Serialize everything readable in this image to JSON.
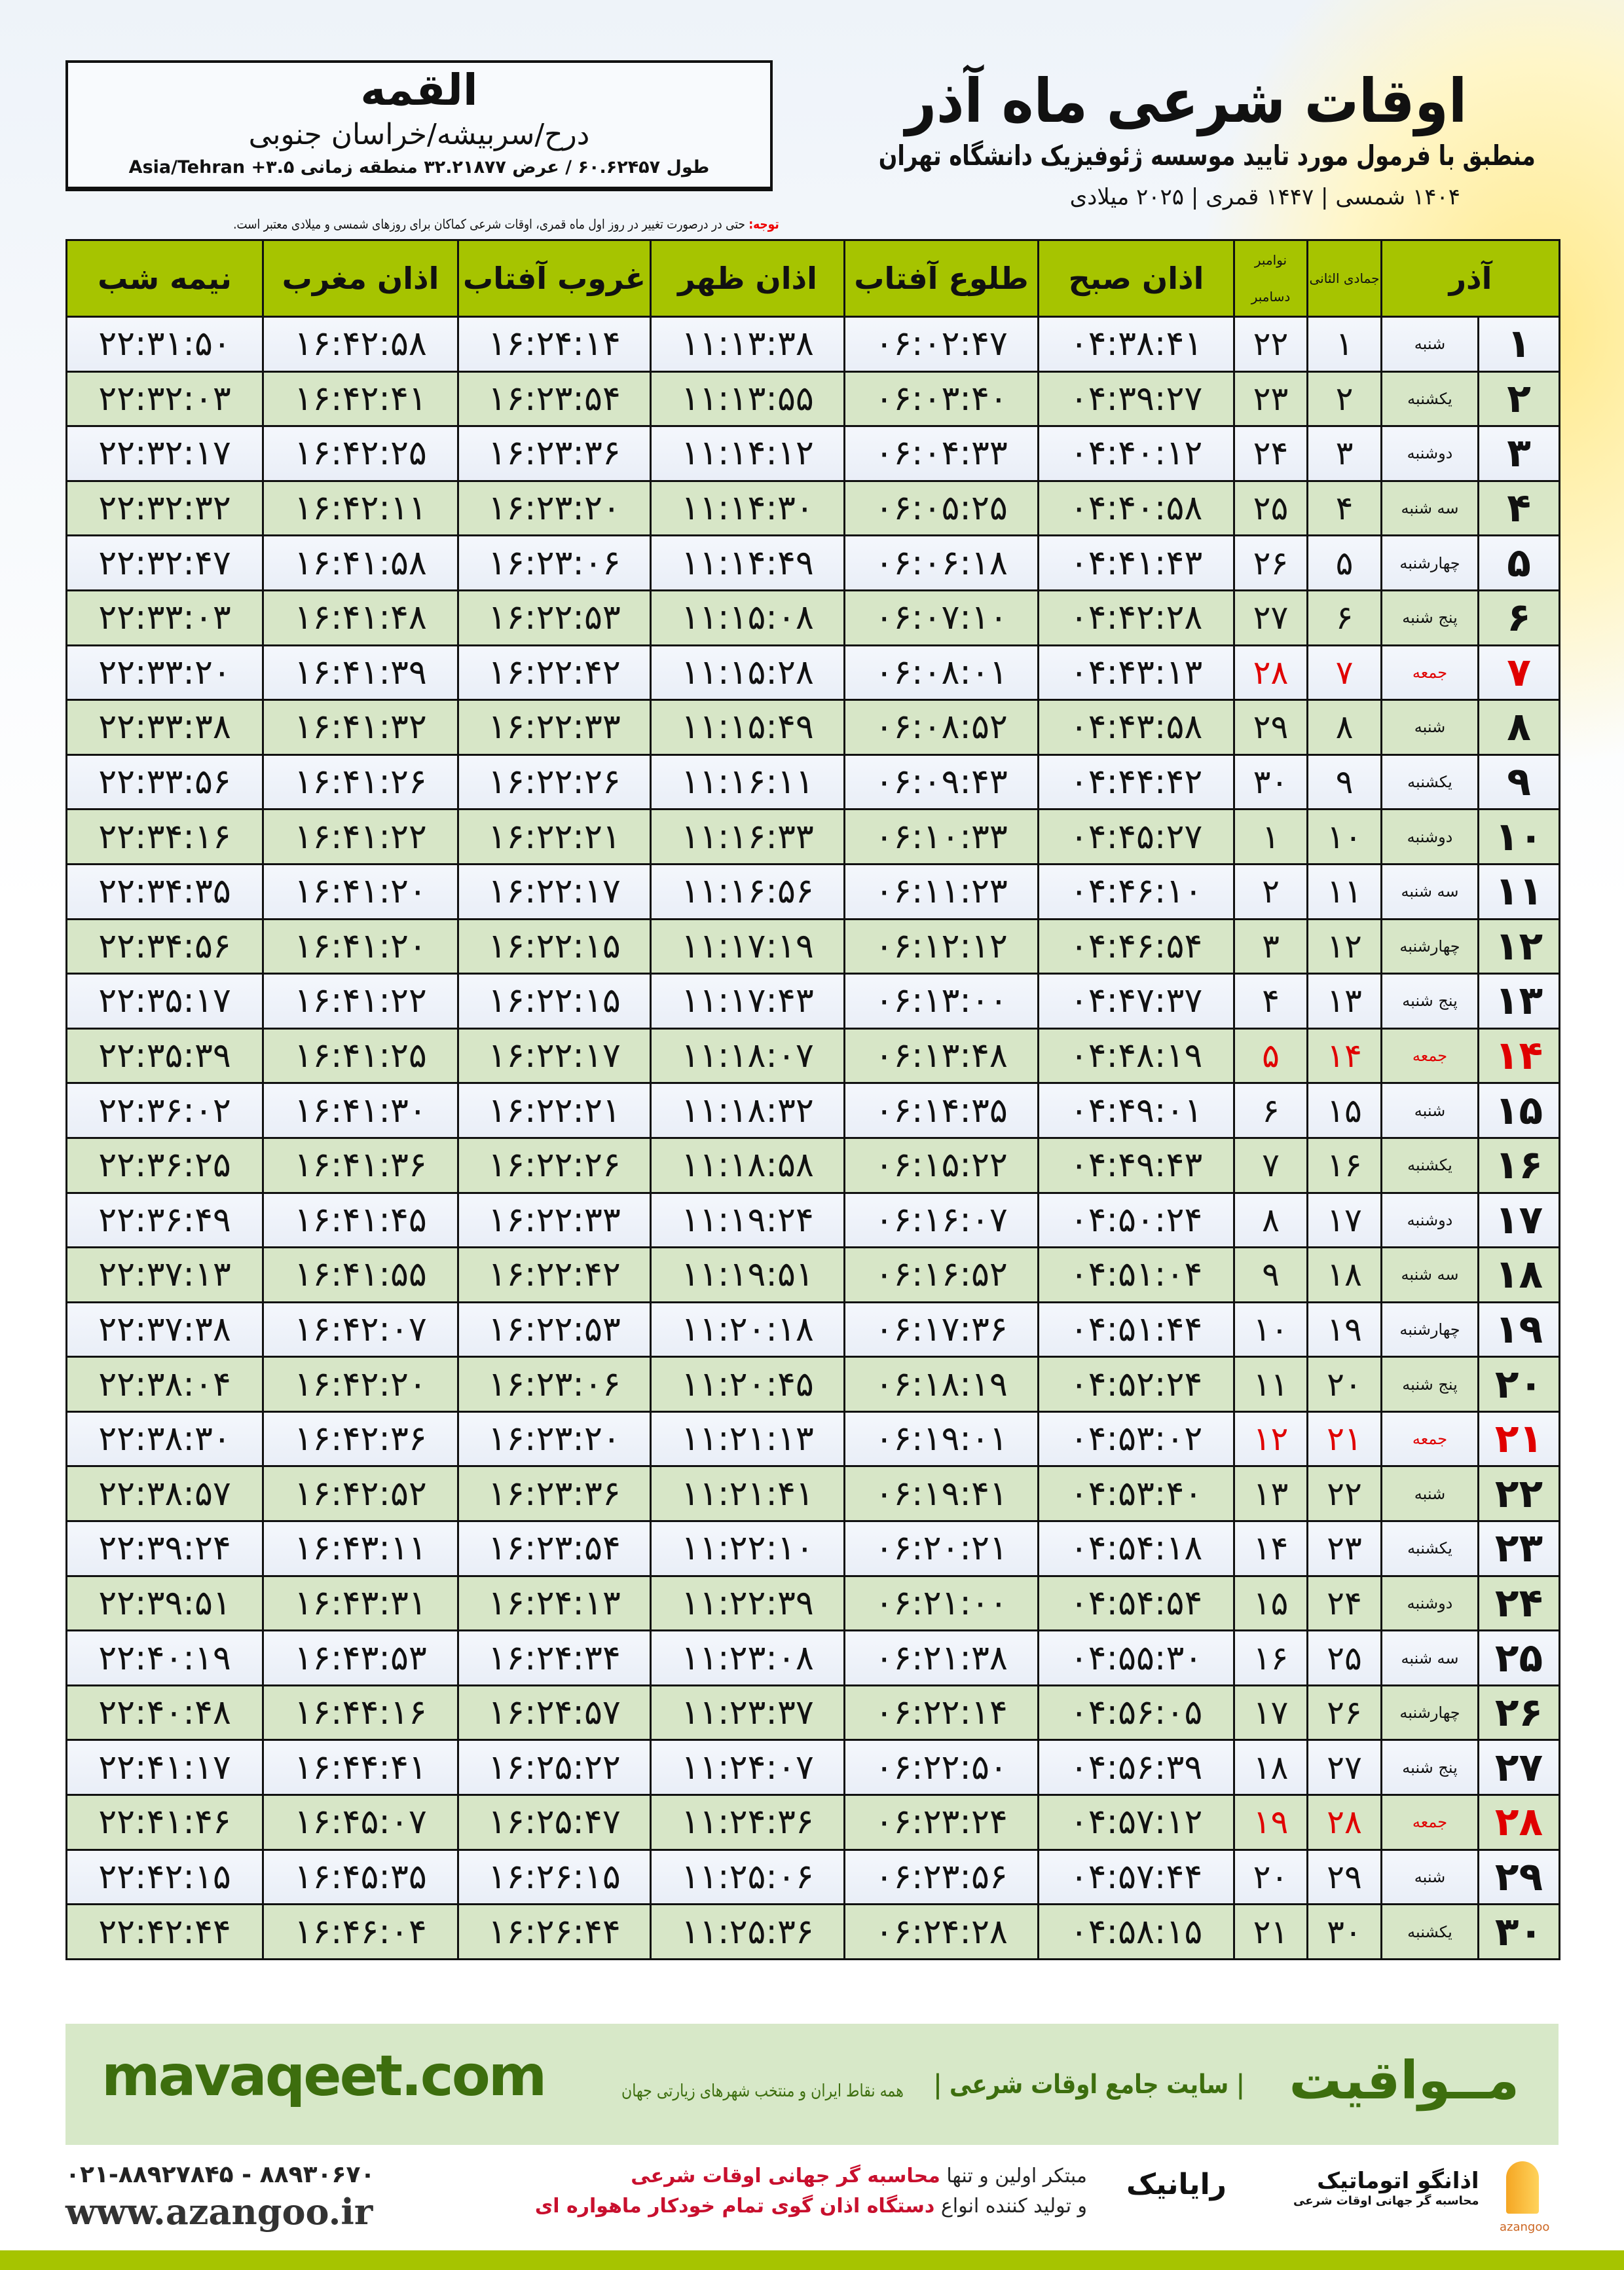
{
  "location": {
    "city": "القمه",
    "region": "درح/سربیشه/خراسان جنوبی",
    "coords": "طول ۶۰.۶۲۴۵۷ / عرض ۳۲.۲۱۸۷۷ منطقه زمانی ۳.۵+ Asia/Tehran"
  },
  "header": {
    "title": "اوقات شرعی ماه آذر",
    "subtitle": "منطبق با فرمول مورد تایید موسسه ژئوفیزیک دانشگاه تهران",
    "dates": "۱۴۰۴ شمسی | ۱۴۴۷ قمری | ۲۰۲۵ میلادی"
  },
  "note": {
    "label": "توجه:",
    "text": " حتی در درصورت تغییر در روز اول ماه قمری، اوقات شرعی کماکان برای روزهای شمسی و میلادی معتبر است."
  },
  "table": {
    "columns": {
      "day": "آذر",
      "hijri": "جمادی الثانی",
      "greg_top": "نوامبر",
      "greg_bottom": "دسامبر",
      "fajr": "اذان صبح",
      "sunrise": "طلوع آفتاب",
      "dhuhr": "اذان ظهر",
      "sunset": "غروب آفتاب",
      "maghrib": "اذان مغرب",
      "midnight": "نیمه شب"
    },
    "holiday_color": "#e00000",
    "rows": [
      [
        "۱",
        "شنبه",
        "۱",
        "۲۲",
        "۰۴:۳۸:۴۱",
        "۰۶:۰۲:۴۷",
        "۱۱:۱۳:۳۸",
        "۱۶:۲۴:۱۴",
        "۱۶:۴۲:۵۸",
        "۲۲:۳۱:۵۰",
        false
      ],
      [
        "۲",
        "یکشنبه",
        "۲",
        "۲۳",
        "۰۴:۳۹:۲۷",
        "۰۶:۰۳:۴۰",
        "۱۱:۱۳:۵۵",
        "۱۶:۲۳:۵۴",
        "۱۶:۴۲:۴۱",
        "۲۲:۳۲:۰۳",
        false
      ],
      [
        "۳",
        "دوشنبه",
        "۳",
        "۲۴",
        "۰۴:۴۰:۱۲",
        "۰۶:۰۴:۳۳",
        "۱۱:۱۴:۱۲",
        "۱۶:۲۳:۳۶",
        "۱۶:۴۲:۲۵",
        "۲۲:۳۲:۱۷",
        false
      ],
      [
        "۴",
        "سه شنبه",
        "۴",
        "۲۵",
        "۰۴:۴۰:۵۸",
        "۰۶:۰۵:۲۵",
        "۱۱:۱۴:۳۰",
        "۱۶:۲۳:۲۰",
        "۱۶:۴۲:۱۱",
        "۲۲:۳۲:۳۲",
        false
      ],
      [
        "۵",
        "چهارشنبه",
        "۵",
        "۲۶",
        "۰۴:۴۱:۴۳",
        "۰۶:۰۶:۱۸",
        "۱۱:۱۴:۴۹",
        "۱۶:۲۳:۰۶",
        "۱۶:۴۱:۵۸",
        "۲۲:۳۲:۴۷",
        false
      ],
      [
        "۶",
        "پنج شنبه",
        "۶",
        "۲۷",
        "۰۴:۴۲:۲۸",
        "۰۶:۰۷:۱۰",
        "۱۱:۱۵:۰۸",
        "۱۶:۲۲:۵۳",
        "۱۶:۴۱:۴۸",
        "۲۲:۳۳:۰۳",
        false
      ],
      [
        "۷",
        "جمعه",
        "۷",
        "۲۸",
        "۰۴:۴۳:۱۳",
        "۰۶:۰۸:۰۱",
        "۱۱:۱۵:۲۸",
        "۱۶:۲۲:۴۲",
        "۱۶:۴۱:۳۹",
        "۲۲:۳۳:۲۰",
        true
      ],
      [
        "۸",
        "شنبه",
        "۸",
        "۲۹",
        "۰۴:۴۳:۵۸",
        "۰۶:۰۸:۵۲",
        "۱۱:۱۵:۴۹",
        "۱۶:۲۲:۳۳",
        "۱۶:۴۱:۳۲",
        "۲۲:۳۳:۳۸",
        false
      ],
      [
        "۹",
        "یکشنبه",
        "۹",
        "۳۰",
        "۰۴:۴۴:۴۲",
        "۰۶:۰۹:۴۳",
        "۱۱:۱۶:۱۱",
        "۱۶:۲۲:۲۶",
        "۱۶:۴۱:۲۶",
        "۲۲:۳۳:۵۶",
        false
      ],
      [
        "۱۰",
        "دوشنبه",
        "۱۰",
        "۱",
        "۰۴:۴۵:۲۷",
        "۰۶:۱۰:۳۳",
        "۱۱:۱۶:۳۳",
        "۱۶:۲۲:۲۱",
        "۱۶:۴۱:۲۲",
        "۲۲:۳۴:۱۶",
        false
      ],
      [
        "۱۱",
        "سه شنبه",
        "۱۱",
        "۲",
        "۰۴:۴۶:۱۰",
        "۰۶:۱۱:۲۳",
        "۱۱:۱۶:۵۶",
        "۱۶:۲۲:۱۷",
        "۱۶:۴۱:۲۰",
        "۲۲:۳۴:۳۵",
        false
      ],
      [
        "۱۲",
        "چهارشنبه",
        "۱۲",
        "۳",
        "۰۴:۴۶:۵۴",
        "۰۶:۱۲:۱۲",
        "۱۱:۱۷:۱۹",
        "۱۶:۲۲:۱۵",
        "۱۶:۴۱:۲۰",
        "۲۲:۳۴:۵۶",
        false
      ],
      [
        "۱۳",
        "پنج شنبه",
        "۱۳",
        "۴",
        "۰۴:۴۷:۳۷",
        "۰۶:۱۳:۰۰",
        "۱۱:۱۷:۴۳",
        "۱۶:۲۲:۱۵",
        "۱۶:۴۱:۲۲",
        "۲۲:۳۵:۱۷",
        false
      ],
      [
        "۱۴",
        "جمعه",
        "۱۴",
        "۵",
        "۰۴:۴۸:۱۹",
        "۰۶:۱۳:۴۸",
        "۱۱:۱۸:۰۷",
        "۱۶:۲۲:۱۷",
        "۱۶:۴۱:۲۵",
        "۲۲:۳۵:۳۹",
        true
      ],
      [
        "۱۵",
        "شنبه",
        "۱۵",
        "۶",
        "۰۴:۴۹:۰۱",
        "۰۶:۱۴:۳۵",
        "۱۱:۱۸:۳۲",
        "۱۶:۲۲:۲۱",
        "۱۶:۴۱:۳۰",
        "۲۲:۳۶:۰۲",
        false
      ],
      [
        "۱۶",
        "یکشنبه",
        "۱۶",
        "۷",
        "۰۴:۴۹:۴۳",
        "۰۶:۱۵:۲۲",
        "۱۱:۱۸:۵۸",
        "۱۶:۲۲:۲۶",
        "۱۶:۴۱:۳۶",
        "۲۲:۳۶:۲۵",
        false
      ],
      [
        "۱۷",
        "دوشنبه",
        "۱۷",
        "۸",
        "۰۴:۵۰:۲۴",
        "۰۶:۱۶:۰۷",
        "۱۱:۱۹:۲۴",
        "۱۶:۲۲:۳۳",
        "۱۶:۴۱:۴۵",
        "۲۲:۳۶:۴۹",
        false
      ],
      [
        "۱۸",
        "سه شنبه",
        "۱۸",
        "۹",
        "۰۴:۵۱:۰۴",
        "۰۶:۱۶:۵۲",
        "۱۱:۱۹:۵۱",
        "۱۶:۲۲:۴۲",
        "۱۶:۴۱:۵۵",
        "۲۲:۳۷:۱۳",
        false
      ],
      [
        "۱۹",
        "چهارشنبه",
        "۱۹",
        "۱۰",
        "۰۴:۵۱:۴۴",
        "۰۶:۱۷:۳۶",
        "۱۱:۲۰:۱۸",
        "۱۶:۲۲:۵۳",
        "۱۶:۴۲:۰۷",
        "۲۲:۳۷:۳۸",
        false
      ],
      [
        "۲۰",
        "پنج شنبه",
        "۲۰",
        "۱۱",
        "۰۴:۵۲:۲۴",
        "۰۶:۱۸:۱۹",
        "۱۱:۲۰:۴۵",
        "۱۶:۲۳:۰۶",
        "۱۶:۴۲:۲۰",
        "۲۲:۳۸:۰۴",
        false
      ],
      [
        "۲۱",
        "جمعه",
        "۲۱",
        "۱۲",
        "۰۴:۵۳:۰۲",
        "۰۶:۱۹:۰۱",
        "۱۱:۲۱:۱۳",
        "۱۶:۲۳:۲۰",
        "۱۶:۴۲:۳۶",
        "۲۲:۳۸:۳۰",
        true
      ],
      [
        "۲۲",
        "شنبه",
        "۲۲",
        "۱۳",
        "۰۴:۵۳:۴۰",
        "۰۶:۱۹:۴۱",
        "۱۱:۲۱:۴۱",
        "۱۶:۲۳:۳۶",
        "۱۶:۴۲:۵۲",
        "۲۲:۳۸:۵۷",
        false
      ],
      [
        "۲۳",
        "یکشنبه",
        "۲۳",
        "۱۴",
        "۰۴:۵۴:۱۸",
        "۰۶:۲۰:۲۱",
        "۱۱:۲۲:۱۰",
        "۱۶:۲۳:۵۴",
        "۱۶:۴۳:۱۱",
        "۲۲:۳۹:۲۴",
        false
      ],
      [
        "۲۴",
        "دوشنبه",
        "۲۴",
        "۱۵",
        "۰۴:۵۴:۵۴",
        "۰۶:۲۱:۰۰",
        "۱۱:۲۲:۳۹",
        "۱۶:۲۴:۱۳",
        "۱۶:۴۳:۳۱",
        "۲۲:۳۹:۵۱",
        false
      ],
      [
        "۲۵",
        "سه شنبه",
        "۲۵",
        "۱۶",
        "۰۴:۵۵:۳۰",
        "۰۶:۲۱:۳۸",
        "۱۱:۲۳:۰۸",
        "۱۶:۲۴:۳۴",
        "۱۶:۴۳:۵۳",
        "۲۲:۴۰:۱۹",
        false
      ],
      [
        "۲۶",
        "چهارشنبه",
        "۲۶",
        "۱۷",
        "۰۴:۵۶:۰۵",
        "۰۶:۲۲:۱۴",
        "۱۱:۲۳:۳۷",
        "۱۶:۲۴:۵۷",
        "۱۶:۴۴:۱۶",
        "۲۲:۴۰:۴۸",
        false
      ],
      [
        "۲۷",
        "پنج شنبه",
        "۲۷",
        "۱۸",
        "۰۴:۵۶:۳۹",
        "۰۶:۲۲:۵۰",
        "۱۱:۲۴:۰۷",
        "۱۶:۲۵:۲۲",
        "۱۶:۴۴:۴۱",
        "۲۲:۴۱:۱۷",
        false
      ],
      [
        "۲۸",
        "جمعه",
        "۲۸",
        "۱۹",
        "۰۴:۵۷:۱۲",
        "۰۶:۲۳:۲۴",
        "۱۱:۲۴:۳۶",
        "۱۶:۲۵:۴۷",
        "۱۶:۴۵:۰۷",
        "۲۲:۴۱:۴۶",
        true
      ],
      [
        "۲۹",
        "شنبه",
        "۲۹",
        "۲۰",
        "۰۴:۵۷:۴۴",
        "۰۶:۲۳:۵۶",
        "۱۱:۲۵:۰۶",
        "۱۶:۲۶:۱۵",
        "۱۶:۴۵:۳۵",
        "۲۲:۴۲:۱۵",
        false
      ],
      [
        "۳۰",
        "یکشنبه",
        "۳۰",
        "۲۱",
        "۰۴:۵۸:۱۵",
        "۰۶:۲۴:۲۸",
        "۱۱:۲۵:۳۶",
        "۱۶:۲۶:۴۴",
        "۱۶:۴۶:۰۴",
        "۲۲:۴۲:۴۴",
        false
      ]
    ]
  },
  "footer": {
    "brand": "مــواقیت",
    "brand_desc": "| سایت جامع اوقات شرعی |",
    "brand_sub": "همه نقاط ایران و منتخب شهرهای زیارتی جهان",
    "site": "mavaqeet.com",
    "promo_1a": "مبتکر اولین و تنها ",
    "promo_1b": "محاسبه گر جهانی اوقات شرعی",
    "promo_2a": "و تولید کننده انواع ",
    "promo_2b": "دستگاه اذان گوی تمام خودکار ماهواره ای",
    "logo_rayanik": "رایانیک",
    "logo_azangoo": "اذانگو اتوماتیک",
    "logo_azangoo_sub": "محاسبه گر جهانی اوقات شرعی",
    "logo_azangoo_en": "azangoo",
    "phone": "۰۲۱-۸۸۹۲۷۸۴۵ - ۸۸۹۳۰۶۷۰",
    "www": "www.azangoo.ir",
    "accent": "#a6c400",
    "brand_color": "#3d6e0e"
  }
}
